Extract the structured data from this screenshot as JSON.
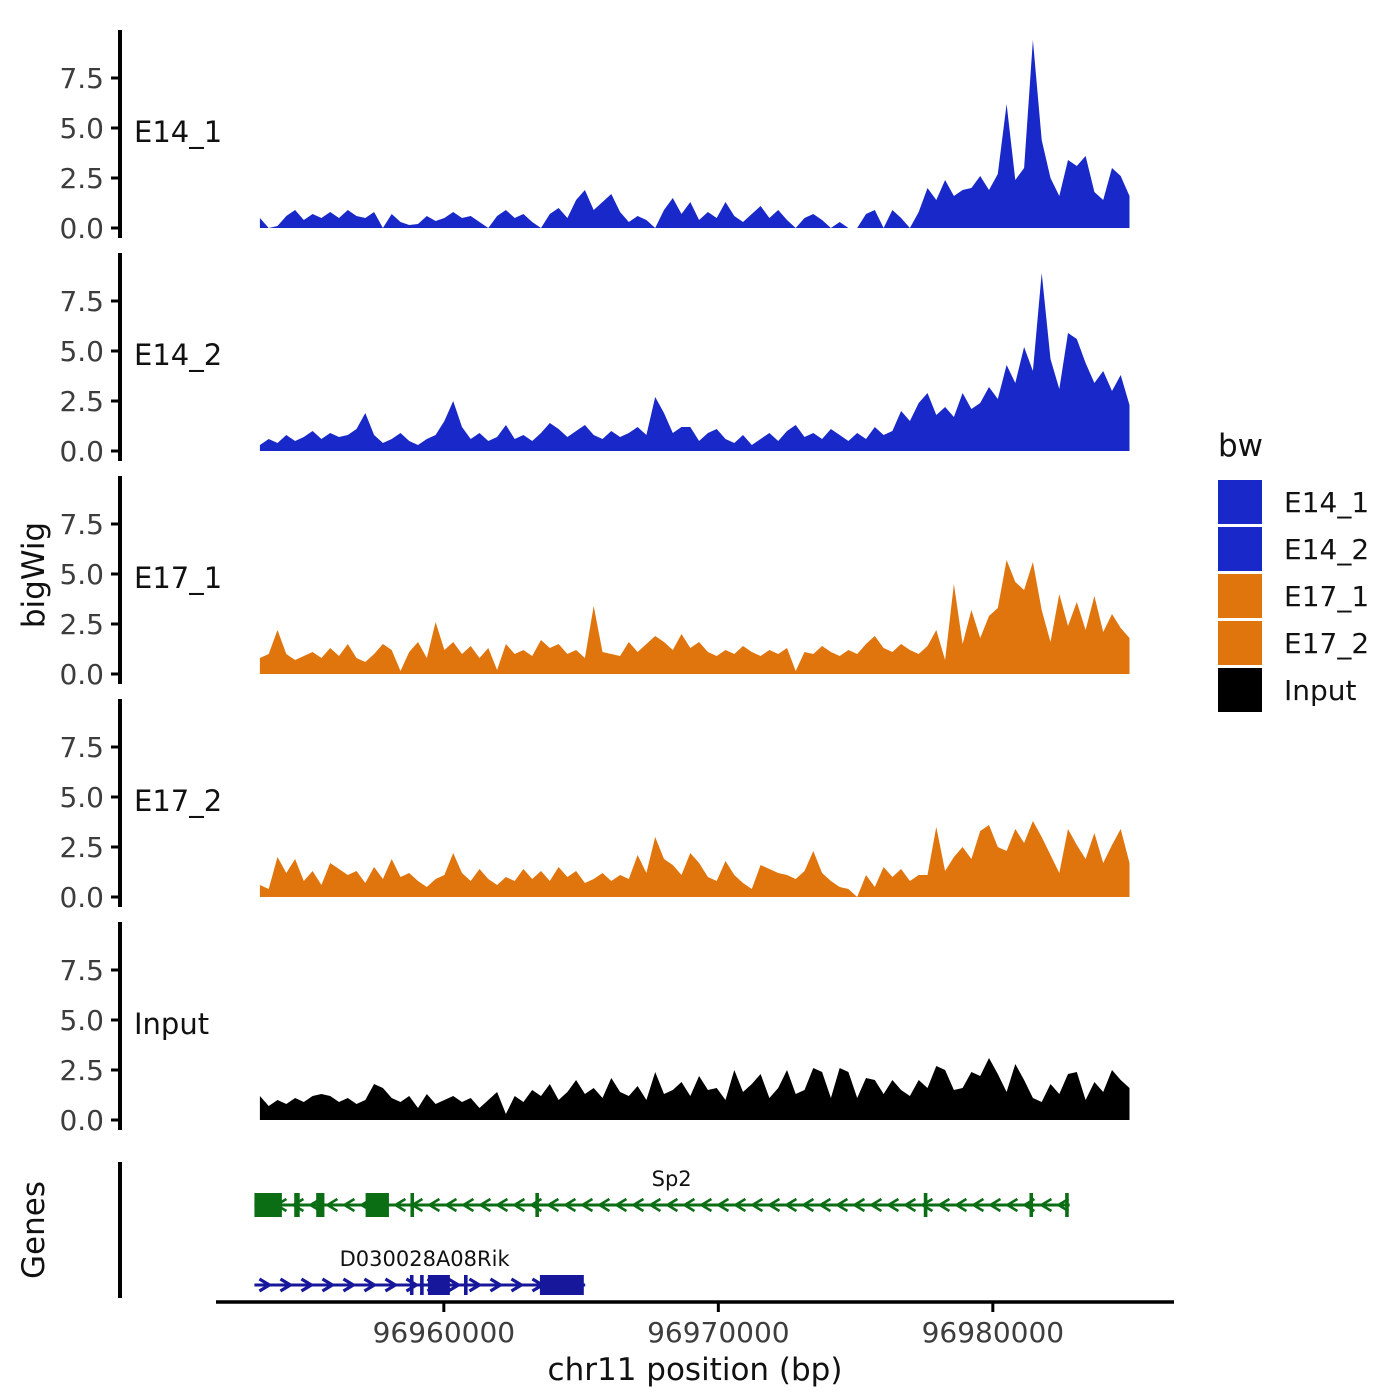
{
  "figure": {
    "y_axis_title": "bigWig",
    "genes_axis_title": "Genes",
    "x_axis_title": "chr11 position (bp)",
    "background": "#FFFFFF",
    "axis_color": "#000000",
    "tick_label_color": "#3d3d3d"
  },
  "legend": {
    "title": "bw",
    "items": [
      {
        "label": "E14_1",
        "color": "#1928C8"
      },
      {
        "label": "E14_2",
        "color": "#1928C8"
      },
      {
        "label": "E17_1",
        "color": "#E0750E"
      },
      {
        "label": "E17_2",
        "color": "#E0750E"
      },
      {
        "label": "Input",
        "color": "#000000"
      }
    ]
  },
  "chart_data": {
    "type": "area",
    "title": "",
    "xlabel": "chr11 position (bp)",
    "ylabel": "bigWig",
    "genes_panel_label": "Genes",
    "x_range": [
      96951700,
      96986600
    ],
    "x_ticks": [
      96960000,
      96970000,
      96980000
    ],
    "x_tick_labels": [
      "96960000",
      "96970000",
      "96980000"
    ],
    "y_ticks": [
      0.0,
      2.5,
      5.0,
      7.5
    ],
    "y_tick_labels": [
      "0.0",
      "2.5",
      "5.0",
      "7.5"
    ],
    "ylim": [
      0,
      9.9
    ],
    "x_start": 96953300,
    "x_step": 320,
    "series": [
      {
        "name": "E14_1",
        "color": "#1928C8",
        "values": [
          0.5,
          0.0,
          0.1,
          0.6,
          0.9,
          0.4,
          0.7,
          0.5,
          0.8,
          0.5,
          0.9,
          0.6,
          0.5,
          0.8,
          0.0,
          0.7,
          0.3,
          0.15,
          0.2,
          0.6,
          0.35,
          0.5,
          0.8,
          0.5,
          0.6,
          0.3,
          0.0,
          0.6,
          0.9,
          0.5,
          0.7,
          0.3,
          0.0,
          0.7,
          1.0,
          0.5,
          1.4,
          1.9,
          0.9,
          1.3,
          1.7,
          0.8,
          0.3,
          0.6,
          0.4,
          0.0,
          0.9,
          1.5,
          0.7,
          1.3,
          0.4,
          0.8,
          0.5,
          1.3,
          0.6,
          0.3,
          0.7,
          1.1,
          0.5,
          0.9,
          0.4,
          0.0,
          0.5,
          0.7,
          0.4,
          0.0,
          0.3,
          0.0,
          0.0,
          0.7,
          0.9,
          0.0,
          0.9,
          0.5,
          0.0,
          0.8,
          2.0,
          1.4,
          2.4,
          1.6,
          1.9,
          2.0,
          2.6,
          1.9,
          2.7,
          6.2,
          2.4,
          3.0,
          9.4,
          4.4,
          2.5,
          1.6,
          3.4,
          3.1,
          3.6,
          1.8,
          1.4,
          3.0,
          2.6,
          1.6
        ]
      },
      {
        "name": "E14_2",
        "color": "#1928C8",
        "values": [
          0.3,
          0.6,
          0.4,
          0.8,
          0.5,
          0.7,
          1.0,
          0.6,
          0.9,
          0.7,
          0.8,
          1.1,
          1.9,
          0.8,
          0.4,
          0.6,
          0.9,
          0.5,
          0.3,
          0.6,
          0.8,
          1.5,
          2.5,
          1.2,
          0.6,
          0.9,
          0.5,
          0.7,
          1.3,
          0.6,
          0.8,
          0.5,
          0.9,
          1.4,
          1.1,
          0.7,
          1.0,
          1.3,
          0.8,
          0.6,
          1.0,
          0.7,
          0.9,
          1.2,
          0.8,
          2.7,
          1.9,
          0.9,
          1.2,
          1.2,
          0.5,
          0.9,
          1.1,
          0.6,
          0.4,
          0.8,
          0.3,
          0.6,
          0.9,
          0.5,
          1.0,
          1.3,
          0.7,
          0.9,
          0.6,
          1.1,
          0.8,
          0.5,
          0.9,
          0.6,
          1.2,
          0.8,
          1.0,
          2.0,
          1.5,
          2.4,
          2.9,
          1.8,
          2.2,
          1.7,
          2.9,
          2.1,
          2.4,
          3.2,
          2.6,
          4.3,
          3.4,
          5.2,
          4.0,
          8.9,
          4.6,
          3.1,
          5.9,
          5.6,
          4.4,
          3.4,
          4.0,
          3.0,
          3.8,
          2.3
        ]
      },
      {
        "name": "E17_1",
        "color": "#E0750E",
        "values": [
          0.8,
          1.0,
          2.2,
          1.0,
          0.7,
          0.9,
          1.1,
          0.8,
          1.3,
          0.9,
          1.5,
          0.8,
          0.6,
          1.0,
          1.5,
          1.2,
          0.15,
          1.1,
          1.6,
          0.8,
          2.6,
          1.2,
          1.6,
          1.0,
          1.4,
          0.8,
          1.3,
          0.2,
          1.5,
          1.0,
          1.2,
          0.9,
          1.7,
          1.3,
          1.5,
          1.0,
          1.2,
          0.8,
          3.4,
          1.1,
          1.0,
          0.9,
          1.6,
          1.1,
          1.5,
          1.9,
          1.6,
          1.2,
          2.0,
          1.3,
          1.6,
          1.1,
          0.9,
          1.2,
          1.0,
          1.4,
          1.1,
          0.9,
          1.2,
          1.0,
          1.3,
          0.15,
          1.1,
          1.0,
          1.4,
          1.1,
          0.9,
          1.2,
          1.0,
          1.5,
          1.9,
          1.3,
          1.1,
          1.5,
          1.2,
          1.0,
          1.4,
          2.2,
          0.7,
          4.5,
          1.5,
          3.2,
          1.8,
          2.9,
          3.3,
          5.7,
          4.6,
          4.2,
          5.6,
          3.2,
          1.6,
          4.0,
          2.4,
          3.6,
          2.2,
          3.9,
          2.1,
          3.0,
          2.3,
          1.8
        ]
      },
      {
        "name": "E17_2",
        "color": "#E0750E",
        "values": [
          0.6,
          0.4,
          2.0,
          1.2,
          1.9,
          0.8,
          1.3,
          0.6,
          1.7,
          1.4,
          1.1,
          1.3,
          0.7,
          1.5,
          0.9,
          1.9,
          1.0,
          1.2,
          0.8,
          0.5,
          0.9,
          1.1,
          2.2,
          1.2,
          0.8,
          1.4,
          0.9,
          0.6,
          1.0,
          0.8,
          1.4,
          0.9,
          1.3,
          0.8,
          1.5,
          1.0,
          1.3,
          0.7,
          0.9,
          1.2,
          0.8,
          1.1,
          0.9,
          2.1,
          1.2,
          3.0,
          1.9,
          1.6,
          1.1,
          2.2,
          1.7,
          1.0,
          0.8,
          1.8,
          1.1,
          0.7,
          0.4,
          1.6,
          1.4,
          1.2,
          1.1,
          0.9,
          1.3,
          2.3,
          1.2,
          0.8,
          0.5,
          0.4,
          0.0,
          1.1,
          0.5,
          1.5,
          1.0,
          1.4,
          0.8,
          1.1,
          1.1,
          3.5,
          1.3,
          2.0,
          2.5,
          1.9,
          3.3,
          3.6,
          2.5,
          2.3,
          3.4,
          2.7,
          3.8,
          3.0,
          2.1,
          1.2,
          3.4,
          2.6,
          1.9,
          3.2,
          1.7,
          2.6,
          3.4,
          1.7
        ]
      },
      {
        "name": "Input",
        "color": "#000000",
        "values": [
          1.2,
          0.7,
          1.0,
          0.8,
          1.1,
          0.9,
          1.2,
          1.3,
          1.2,
          0.9,
          1.1,
          0.8,
          1.0,
          1.8,
          1.6,
          1.1,
          0.9,
          1.2,
          0.6,
          1.3,
          0.8,
          1.0,
          1.2,
          0.9,
          1.1,
          0.6,
          1.0,
          1.4,
          0.3,
          1.2,
          0.9,
          1.5,
          1.2,
          1.8,
          1.0,
          1.4,
          2.0,
          1.3,
          1.6,
          1.1,
          2.1,
          1.4,
          1.2,
          1.7,
          1.0,
          2.4,
          1.3,
          1.5,
          1.9,
          1.2,
          2.2,
          1.5,
          1.6,
          1.0,
          2.5,
          1.4,
          1.8,
          2.3,
          1.1,
          1.6,
          2.5,
          1.3,
          1.5,
          2.6,
          2.4,
          1.1,
          2.6,
          2.4,
          1.1,
          2.1,
          2.0,
          1.3,
          2.0,
          1.5,
          1.2,
          2.0,
          1.6,
          2.7,
          2.5,
          1.5,
          1.6,
          2.4,
          2.2,
          3.1,
          2.3,
          1.4,
          2.8,
          2.0,
          1.1,
          0.9,
          1.8,
          1.3,
          2.3,
          2.4,
          1.0,
          1.9,
          1.4,
          2.5,
          2.0,
          1.6
        ]
      }
    ],
    "genes": [
      {
        "name": "Sp2",
        "strand": "-",
        "color": "#0B6E14",
        "start": 96953100,
        "end": 96982800,
        "label_bp": 96968300,
        "exons": [
          [
            96953100,
            96954100
          ],
          [
            96954550,
            96954750
          ],
          [
            96955350,
            96955650
          ],
          [
            96957150,
            96958000
          ]
        ],
        "exon_ticks": [
          96958850,
          96963400,
          96977550,
          96981400,
          96982700
        ]
      },
      {
        "name": "D030028A08Rik",
        "strand": "+",
        "color": "#17179B",
        "start": 96953100,
        "end": 96965150,
        "label_bp": 96959300,
        "exons": [
          [
            96959420,
            96960220
          ],
          [
            96963500,
            96965100
          ]
        ],
        "exon_ticks": [
          96958830,
          96959200,
          96960800
        ]
      }
    ]
  }
}
